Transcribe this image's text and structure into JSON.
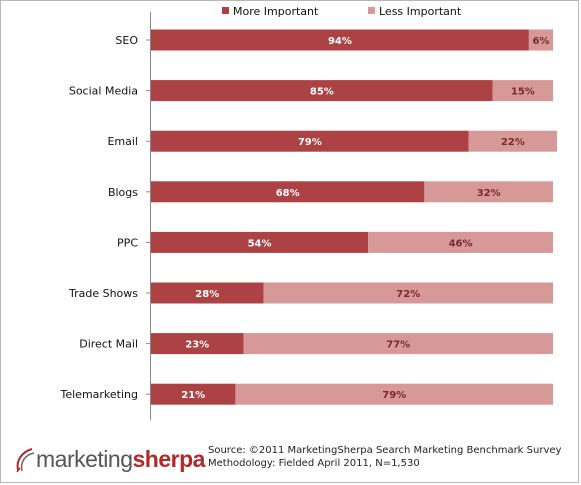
{
  "chart_data": {
    "type": "bar",
    "orientation": "horizontal",
    "stacked": true,
    "categories": [
      "SEO",
      "Social Media",
      "Email",
      "Blogs",
      "PPC",
      "Trade Shows",
      "Direct Mail",
      "Telemarketing"
    ],
    "series": [
      {
        "name": "More Important",
        "values": [
          94,
          85,
          79,
          68,
          54,
          28,
          23,
          21
        ],
        "labels": [
          "94%",
          "85%",
          "79%",
          "68%",
          "54%",
          "28%",
          "23%",
          "21%"
        ],
        "color": "#ad4244"
      },
      {
        "name": "Less Important",
        "values": [
          6,
          15,
          22,
          32,
          46,
          72,
          77,
          79
        ],
        "labels": [
          "6%",
          "15%",
          "22%",
          "32%",
          "46%",
          "72%",
          "77%",
          "79%"
        ],
        "color": "#d79898"
      }
    ],
    "xlim": [
      0,
      100
    ],
    "grid": false,
    "legend": "top"
  },
  "colors": {
    "more_label": "#ffffff",
    "less_label": "#7a2a2c",
    "axis": "#888888"
  },
  "footer": {
    "logo_part1": "marketing",
    "logo_part2": "sherpa",
    "source_line": "Source: ©2011 MarketingSherpa Search Marketing Benchmark Survey",
    "methodology_line": "Methodology: Fielded April 2011, N=1,530"
  }
}
